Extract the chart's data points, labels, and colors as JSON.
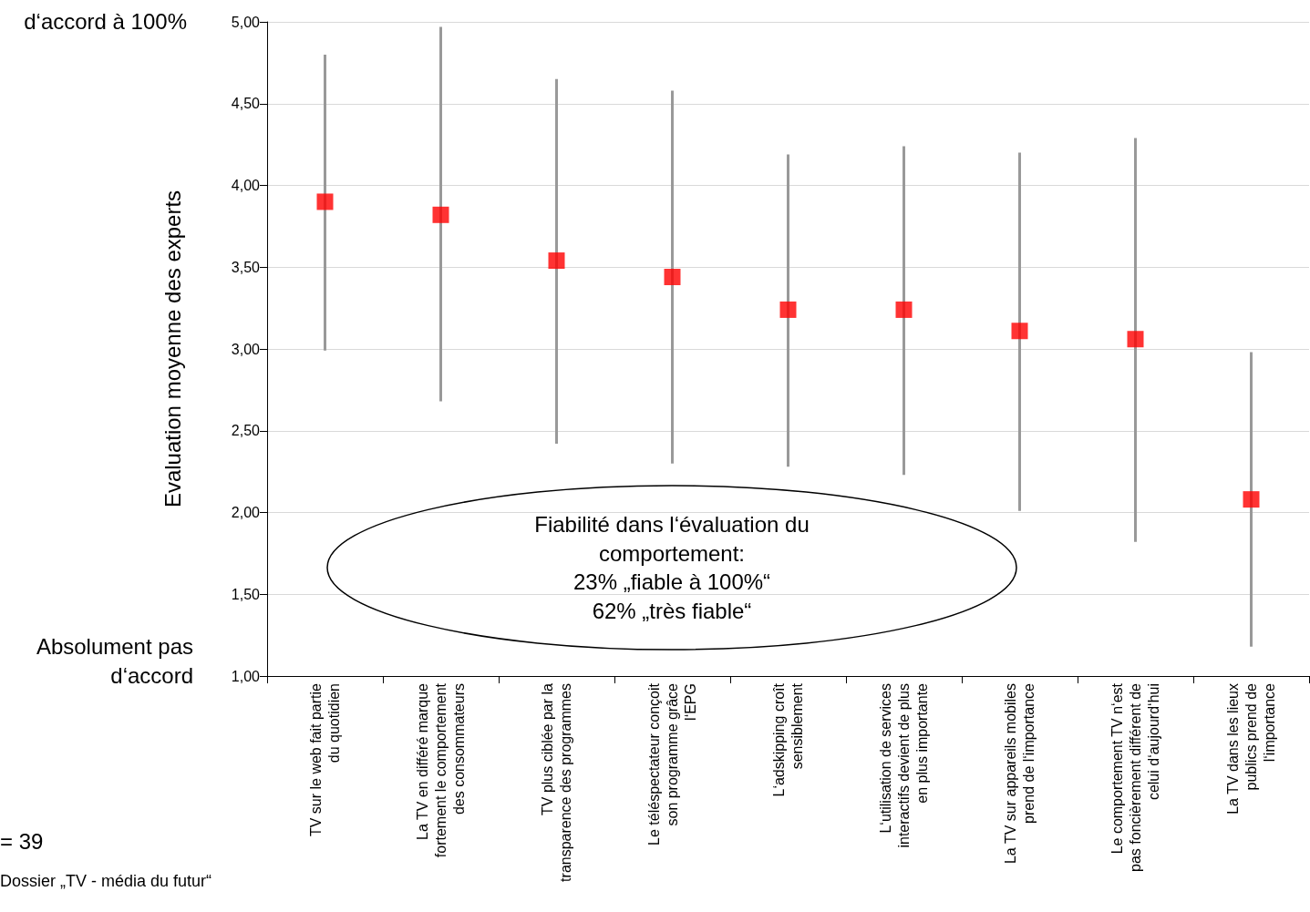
{
  "chart_data": {
    "type": "scatter",
    "ylabel": "Evaluation moyenne des experts",
    "categories": [
      "TV sur le web fait partie\ndu quotidien",
      "La TV en différé marque\nfortement le comportement\ndes consommateurs",
      "TV plus ciblée par la\ntransparence des programmes",
      "Le téléspectateur conçoit\nson programme grâce\nl‘EPG",
      "L‘adskipping croît\nsensiblement",
      "L‘utilisation de services\ninteractifs devient de plus\nen plus importante",
      "La TV sur appareils mobiles\nprend de l‘importance",
      "Le comportement TV n‘est\npas foncièrement différent de\ncelui d‘aujourd‘hui",
      "La TV dans les lieux\npublics prend de\nl‘importance"
    ],
    "values": [
      3.9,
      3.82,
      3.54,
      3.44,
      3.24,
      3.24,
      3.11,
      3.06,
      2.08
    ],
    "errors": [
      [
        2.99,
        4.8
      ],
      [
        2.68,
        4.97
      ],
      [
        2.42,
        4.65
      ],
      [
        2.3,
        4.58
      ],
      [
        2.28,
        4.19
      ],
      [
        2.23,
        4.24
      ],
      [
        2.01,
        4.2
      ],
      [
        1.82,
        4.29
      ],
      [
        1.18,
        2.98
      ]
    ],
    "color": "#ff0000",
    "marker": "square",
    "ylim": [
      1,
      5
    ],
    "yticks": [
      {
        "value": 1,
        "label": "1,00"
      },
      {
        "value": 1.5,
        "label": "1,50"
      },
      {
        "value": 2,
        "label": "2,00"
      },
      {
        "value": 2.5,
        "label": "2,50"
      },
      {
        "value": 3,
        "label": "3,00"
      },
      {
        "value": 3.5,
        "label": "3,50"
      },
      {
        "value": 4,
        "label": "4,00"
      },
      {
        "value": 4.5,
        "label": "4,50"
      },
      {
        "value": 5,
        "label": "5,00"
      }
    ],
    "grid": "y",
    "annotations": [
      "d‘accord à 100%",
      "Absolument pas\nd‘accord",
      "= 39",
      "Dossier „TV - média du futur“",
      "Fiabilité dans l‘évaluation du\ncomportement:\n23% „fiable à 100%“\n62% „très fiable“"
    ]
  }
}
